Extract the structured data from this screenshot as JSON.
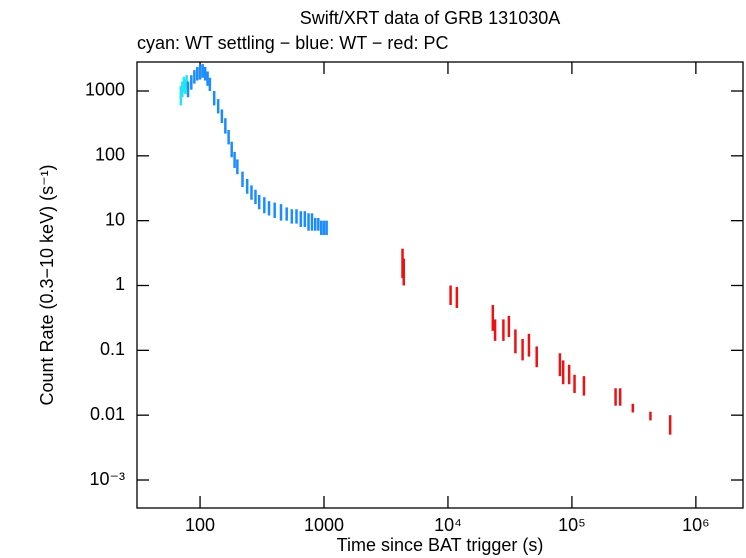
{
  "chart_data": {
    "type": "scatter",
    "title": "Swift/XRT data of GRB 131030A",
    "subtitle": "cyan: WT settling − blue: WT − red: PC",
    "x_label": "Time since BAT trigger (s)",
    "y_label": "Count Rate (0.3−10 keV) (s⁻¹)",
    "x_log": true,
    "y_log": true,
    "xlim": [
      31,
      2400000
    ],
    "ylim": [
      0.00037,
      2800
    ],
    "xticks": [
      100,
      1000,
      {
        "value": 10000,
        "label": "10⁴"
      },
      {
        "value": 100000,
        "label": "10⁵"
      },
      {
        "value": 1000000,
        "label": "10⁶"
      }
    ],
    "yticks": [
      1000,
      100,
      10,
      1,
      0.1,
      0.01,
      {
        "value": 0.001,
        "label": "10⁻³"
      }
    ],
    "series": [
      {
        "color": "#22e4f4",
        "x": [
          70,
          72,
          74,
          76,
          78
        ],
        "values": [
          900,
          1100,
          1300,
          1200,
          1400
        ],
        "errors": [
          300,
          300,
          350,
          300,
          350
        ]
      },
      {
        "color": "#1a8cff",
        "x": [
          80,
          85,
          90,
          95,
          100,
          105,
          110,
          115,
          120,
          130,
          140,
          150,
          160,
          170,
          180,
          190,
          200,
          220,
          240,
          260,
          280,
          300,
          330,
          360,
          400,
          450,
          500,
          550,
          600,
          650,
          700,
          750,
          800,
          850,
          900,
          950,
          1000,
          1050
        ],
        "values": [
          1100,
          1400,
          1700,
          1900,
          2000,
          2100,
          1900,
          1600,
          1300,
          800,
          600,
          420,
          300,
          200,
          130,
          90,
          70,
          45,
          35,
          28,
          24,
          20,
          18,
          16,
          15,
          14,
          13,
          12,
          12,
          11,
          11,
          10,
          10,
          9,
          9,
          8,
          8,
          8
        ],
        "errors": [
          300,
          350,
          400,
          450,
          500,
          500,
          450,
          400,
          300,
          200,
          150,
          100,
          80,
          50,
          35,
          25,
          18,
          12,
          9,
          7,
          6,
          5,
          5,
          4,
          4,
          4,
          3,
          3,
          3,
          3,
          3,
          3,
          3,
          2,
          2,
          2,
          2,
          2
        ]
      },
      {
        "color": "#ee1111",
        "x": [
          4300,
          4400,
          10500,
          11800,
          23000,
          24000,
          28000,
          31000,
          35000,
          40000,
          45000,
          52000,
          80000,
          85000,
          95000,
          105000,
          125000,
          225000,
          245000,
          310000,
          430000,
          620000
        ],
        "values": [
          2.5,
          1.8,
          0.75,
          0.7,
          0.35,
          0.22,
          0.22,
          0.25,
          0.15,
          0.11,
          0.13,
          0.085,
          0.065,
          0.05,
          0.045,
          0.032,
          0.03,
          0.02,
          0.02,
          0.013,
          0.0098,
          0.0075
        ],
        "errors": [
          1.2,
          0.8,
          0.25,
          0.25,
          0.15,
          0.08,
          0.08,
          0.09,
          0.06,
          0.04,
          0.05,
          0.03,
          0.025,
          0.02,
          0.015,
          0.01,
          0.01,
          0.006,
          0.006,
          0.002,
          0.0015,
          0.0025
        ]
      }
    ]
  }
}
